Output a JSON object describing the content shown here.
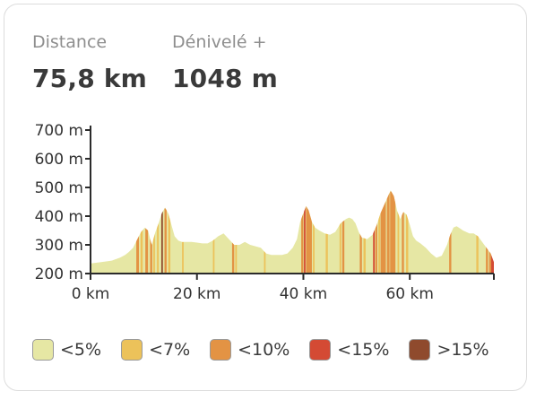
{
  "stats": {
    "distance_label": "Distance",
    "distance_value": "75,8 km",
    "elevation_label": "Dénivelé +",
    "elevation_value": "1048 m"
  },
  "chart_data": {
    "type": "area",
    "title": "",
    "xlabel": "",
    "ylabel": "",
    "xlim": [
      0,
      75.8
    ],
    "ylim": [
      200,
      700
    ],
    "x_ticks": [
      0,
      20,
      40,
      60
    ],
    "x_tick_labels": [
      "0 km",
      "20 km",
      "40 km",
      "60 km"
    ],
    "y_ticks": [
      200,
      300,
      400,
      500,
      600,
      700
    ],
    "y_tick_labels": [
      "200 m",
      "300 m",
      "400 m",
      "500 m",
      "600 m",
      "700 m"
    ],
    "profile": {
      "x_km": [
        0,
        2,
        4,
        5.5,
        6.5,
        7.2,
        8,
        8.8,
        9.5,
        10.2,
        10.8,
        11.5,
        12.2,
        12.8,
        13.4,
        14,
        14.6,
        15.2,
        15.8,
        16.5,
        17.2,
        18,
        19,
        20,
        21,
        22,
        23,
        24,
        25,
        26,
        27,
        28,
        29,
        30,
        31,
        32,
        33,
        34,
        35,
        36,
        37,
        38,
        38.8,
        39.4,
        40,
        40.5,
        41,
        41.6,
        42.2,
        43,
        44,
        45,
        46,
        47,
        48,
        48.6,
        49.2,
        49.8,
        50.4,
        51,
        52,
        53,
        53.8,
        54.5,
        55.2,
        55.8,
        56.4,
        57,
        57.6,
        58.2,
        58.8,
        59.4,
        60,
        60.6,
        61.2,
        62,
        63,
        64,
        65,
        66,
        67,
        67.6,
        68.2,
        68.8,
        69.4,
        70,
        70.6,
        71.2,
        72,
        72.8,
        73.6,
        74.4,
        75.2,
        75.8
      ],
      "elevation_m": [
        235,
        240,
        245,
        255,
        265,
        275,
        290,
        320,
        345,
        360,
        350,
        300,
        345,
        375,
        410,
        430,
        410,
        370,
        330,
        315,
        310,
        310,
        310,
        308,
        305,
        305,
        315,
        330,
        340,
        320,
        300,
        300,
        310,
        300,
        295,
        290,
        270,
        265,
        265,
        265,
        270,
        290,
        320,
        380,
        410,
        435,
        420,
        380,
        360,
        350,
        340,
        335,
        345,
        375,
        390,
        395,
        390,
        375,
        345,
        325,
        320,
        335,
        370,
        410,
        440,
        465,
        490,
        470,
        420,
        390,
        415,
        405,
        370,
        330,
        315,
        305,
        290,
        270,
        255,
        262,
        300,
        335,
        360,
        365,
        358,
        350,
        345,
        340,
        340,
        330,
        310,
        290,
        270,
        240
      ]
    },
    "slope_bands": [
      {
        "from_km": 8.6,
        "to_km": 9.1,
        "class": "lt10"
      },
      {
        "from_km": 9.4,
        "to_km": 9.8,
        "class": "lt7"
      },
      {
        "from_km": 10.3,
        "to_km": 10.8,
        "class": "lt10"
      },
      {
        "from_km": 11.2,
        "to_km": 11.6,
        "class": "lt10"
      },
      {
        "from_km": 11.8,
        "to_km": 12.1,
        "class": "lt7"
      },
      {
        "from_km": 12.5,
        "to_km": 12.8,
        "class": "lt7"
      },
      {
        "from_km": 13.3,
        "to_km": 13.6,
        "class": "gt15"
      },
      {
        "from_km": 13.9,
        "to_km": 14.3,
        "class": "lt10"
      },
      {
        "from_km": 14.6,
        "to_km": 15.0,
        "class": "lt7"
      },
      {
        "from_km": 17.2,
        "to_km": 17.5,
        "class": "lt7"
      },
      {
        "from_km": 23.0,
        "to_km": 23.3,
        "class": "lt7"
      },
      {
        "from_km": 26.6,
        "to_km": 27.0,
        "class": "lt10"
      },
      {
        "from_km": 27.2,
        "to_km": 27.5,
        "class": "lt7"
      },
      {
        "from_km": 32.6,
        "to_km": 32.9,
        "class": "lt7"
      },
      {
        "from_km": 39.6,
        "to_km": 40.0,
        "class": "lt10"
      },
      {
        "from_km": 40.1,
        "to_km": 40.4,
        "class": "lt15"
      },
      {
        "from_km": 40.5,
        "to_km": 41.6,
        "class": "lt10"
      },
      {
        "from_km": 41.8,
        "to_km": 42.1,
        "class": "lt7"
      },
      {
        "from_km": 44.2,
        "to_km": 44.6,
        "class": "lt7"
      },
      {
        "from_km": 46.8,
        "to_km": 47.1,
        "class": "lt7"
      },
      {
        "from_km": 47.3,
        "to_km": 47.7,
        "class": "lt10"
      },
      {
        "from_km": 50.6,
        "to_km": 51.0,
        "class": "lt10"
      },
      {
        "from_km": 51.3,
        "to_km": 51.7,
        "class": "lt7"
      },
      {
        "from_km": 53.1,
        "to_km": 53.4,
        "class": "lt15"
      },
      {
        "from_km": 53.5,
        "to_km": 53.9,
        "class": "lt10"
      },
      {
        "from_km": 54.1,
        "to_km": 54.4,
        "class": "lt7"
      },
      {
        "from_km": 54.5,
        "to_km": 55.5,
        "class": "lt10"
      },
      {
        "from_km": 55.7,
        "to_km": 56.2,
        "class": "lt10"
      },
      {
        "from_km": 56.3,
        "to_km": 57.3,
        "class": "lt10"
      },
      {
        "from_km": 57.7,
        "to_km": 58.0,
        "class": "lt7"
      },
      {
        "from_km": 58.5,
        "to_km": 58.9,
        "class": "lt10"
      },
      {
        "from_km": 59.3,
        "to_km": 59.7,
        "class": "lt7"
      },
      {
        "from_km": 67.4,
        "to_km": 67.8,
        "class": "lt10"
      },
      {
        "from_km": 72.5,
        "to_km": 72.9,
        "class": "lt7"
      },
      {
        "from_km": 74.3,
        "to_km": 74.7,
        "class": "lt10"
      },
      {
        "from_km": 74.9,
        "to_km": 75.3,
        "class": "lt10"
      },
      {
        "from_km": 75.3,
        "to_km": 75.8,
        "class": "lt15"
      }
    ],
    "colors": {
      "lt5": "#e6e7a4",
      "lt7": "#ecc25a",
      "lt10": "#e39344",
      "lt15": "#d44a34",
      "gt15": "#8f4a2d"
    }
  },
  "legend": [
    {
      "key": "lt5",
      "label": "<5%"
    },
    {
      "key": "lt7",
      "label": "<7%"
    },
    {
      "key": "lt10",
      "label": "<10%"
    },
    {
      "key": "lt15",
      "label": "<15%"
    },
    {
      "key": "gt15",
      "label": ">15%"
    }
  ]
}
